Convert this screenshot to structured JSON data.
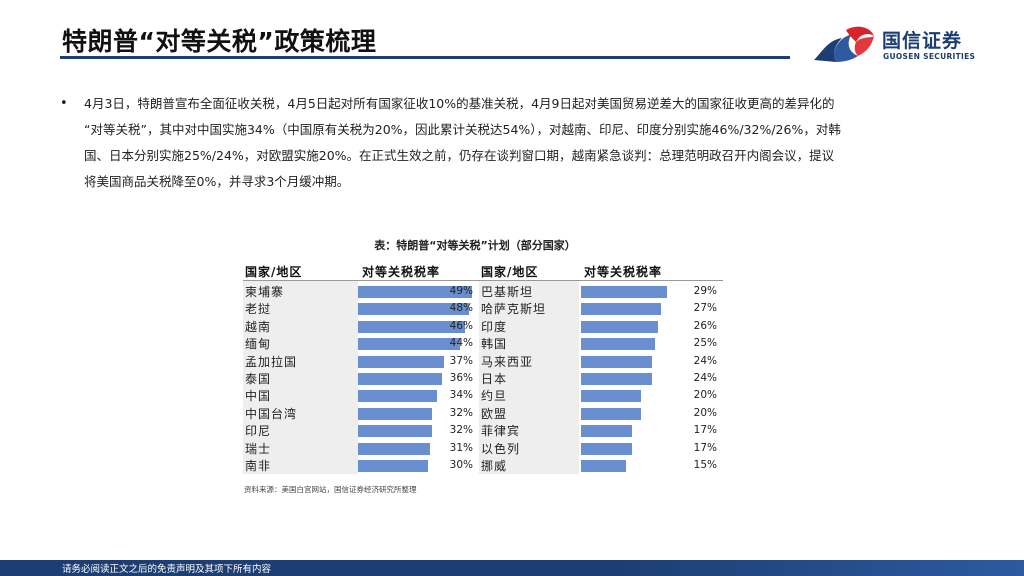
{
  "header": {
    "title": "特朗普“对等关税”政策梳理",
    "logo_cn": "国信证券",
    "logo_en": "GUOSEN SECURITIES"
  },
  "bullet": {
    "lines": [
      "4月3日，特朗普宣布全面征收关税，4月5日起对所有国家征收10%的基准关税，4月9日起对美国贸易逆差大的国家征收更高的差异化的",
      "“对等关税”，其中对中国实施34%（中国原有关税为20%，因此累计关税达54%），对越南、印尼、印度分别实施46%/32%/26%，对韩",
      "国、日本分别实施25%/24%，对欧盟实施20%。在正式生效之前，仍存在谈判窗口期，越南紧急谈判：总理范明政召开内阁会议，提议",
      "将美国商品关税降至0%，并寻求3个月缓冲期。"
    ]
  },
  "table": {
    "title": "表：特朗普“对等关税”计划（部分国家）",
    "headers": [
      "国家/地区",
      "对等关税税率",
      "国家/地区",
      "对等关税税率"
    ],
    "left": [
      {
        "name": "柬埔寨",
        "rate": 49,
        "label": "49%"
      },
      {
        "name": "老挝",
        "rate": 48,
        "label": "48%"
      },
      {
        "name": "越南",
        "rate": 46,
        "label": "46%"
      },
      {
        "name": "缅甸",
        "rate": 44,
        "label": "44%"
      },
      {
        "name": "孟加拉国",
        "rate": 37,
        "label": "37%"
      },
      {
        "name": "泰国",
        "rate": 36,
        "label": "36%"
      },
      {
        "name": "中国",
        "rate": 34,
        "label": "34%"
      },
      {
        "name": "中国台湾",
        "rate": 32,
        "label": "32%"
      },
      {
        "name": "印尼",
        "rate": 32,
        "label": "32%"
      },
      {
        "name": "瑞士",
        "rate": 31,
        "label": "31%"
      },
      {
        "name": "南非",
        "rate": 30,
        "label": "30%"
      }
    ],
    "right": [
      {
        "name": "巴基斯坦",
        "rate": 29,
        "label": "29%"
      },
      {
        "name": "哈萨克斯坦",
        "rate": 27,
        "label": "27%"
      },
      {
        "name": "印度",
        "rate": 26,
        "label": "26%"
      },
      {
        "name": "韩国",
        "rate": 25,
        "label": "25%"
      },
      {
        "name": "马来西亚",
        "rate": 24,
        "label": "24%"
      },
      {
        "name": "日本",
        "rate": 24,
        "label": "24%"
      },
      {
        "name": "约旦",
        "rate": 20,
        "label": "20%"
      },
      {
        "name": "欧盟",
        "rate": 20,
        "label": "20%"
      },
      {
        "name": "菲律宾",
        "rate": 17,
        "label": "17%"
      },
      {
        "name": "以色列",
        "rate": 17,
        "label": "17%"
      },
      {
        "name": "挪威",
        "rate": 15,
        "label": "15%"
      }
    ],
    "bar_color": "#6a8fd0",
    "source": "资料来源：美国白宫网站，国信证券经济研究所整理"
  },
  "footer": {
    "text": "请务必阅读正文之后的免责声明及其项下所有内容"
  }
}
